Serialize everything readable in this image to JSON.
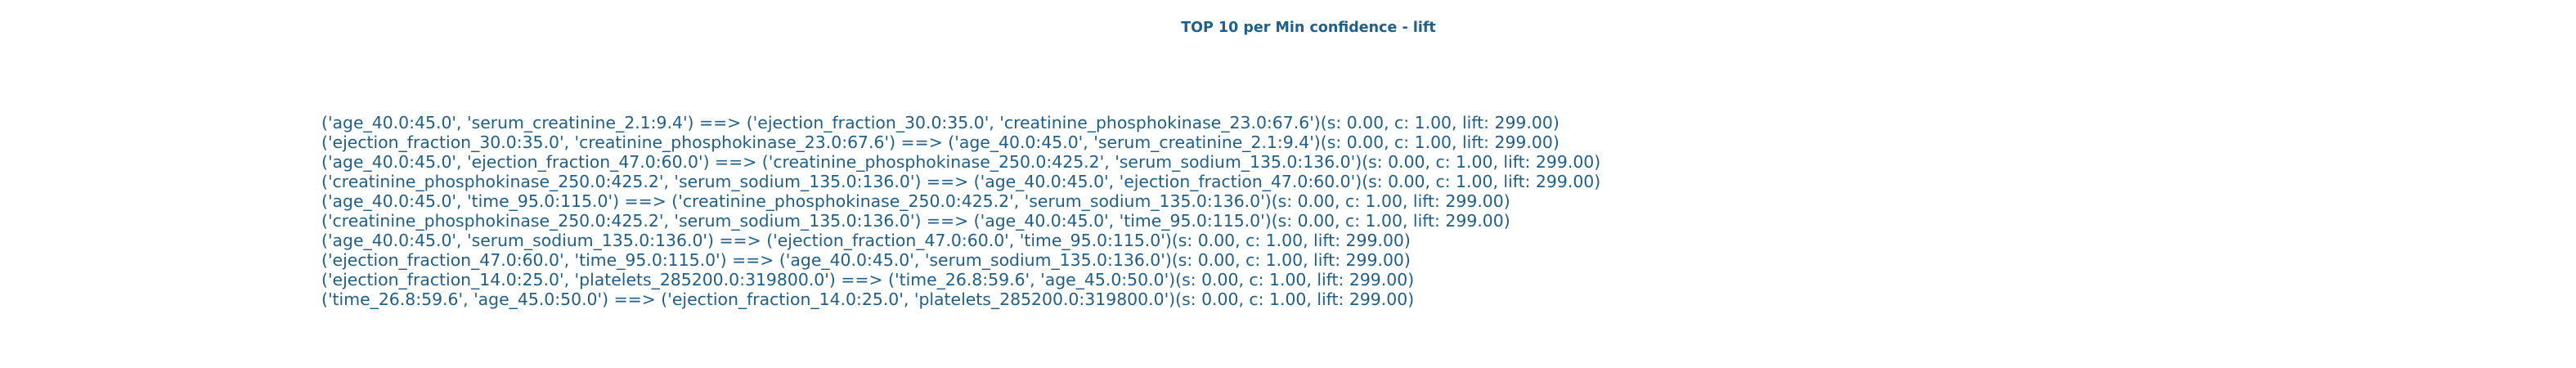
{
  "chart_data": {
    "type": "table",
    "title": "TOP 10 per Min confidence - lift",
    "colors": {
      "text": "#205f87",
      "background": "#ffffff"
    },
    "rows": [
      "('age_40.0:45.0', 'serum_creatinine_2.1:9.4') ==> ('ejection_fraction_30.0:35.0', 'creatinine_phosphokinase_23.0:67.6')(s: 0.00, c: 1.00, lift: 299.00)",
      "('ejection_fraction_30.0:35.0', 'creatinine_phosphokinase_23.0:67.6') ==> ('age_40.0:45.0', 'serum_creatinine_2.1:9.4')(s: 0.00, c: 1.00, lift: 299.00)",
      "('age_40.0:45.0', 'ejection_fraction_47.0:60.0') ==> ('creatinine_phosphokinase_250.0:425.2', 'serum_sodium_135.0:136.0')(s: 0.00, c: 1.00, lift: 299.00)",
      "('creatinine_phosphokinase_250.0:425.2', 'serum_sodium_135.0:136.0') ==> ('age_40.0:45.0', 'ejection_fraction_47.0:60.0')(s: 0.00, c: 1.00, lift: 299.00)",
      "('age_40.0:45.0', 'time_95.0:115.0') ==> ('creatinine_phosphokinase_250.0:425.2', 'serum_sodium_135.0:136.0')(s: 0.00, c: 1.00, lift: 299.00)",
      "('creatinine_phosphokinase_250.0:425.2', 'serum_sodium_135.0:136.0') ==> ('age_40.0:45.0', 'time_95.0:115.0')(s: 0.00, c: 1.00, lift: 299.00)",
      "('age_40.0:45.0', 'serum_sodium_135.0:136.0') ==> ('ejection_fraction_47.0:60.0', 'time_95.0:115.0')(s: 0.00, c: 1.00, lift: 299.00)",
      "('ejection_fraction_47.0:60.0', 'time_95.0:115.0') ==> ('age_40.0:45.0', 'serum_sodium_135.0:136.0')(s: 0.00, c: 1.00, lift: 299.00)",
      "('ejection_fraction_14.0:25.0', 'platelets_285200.0:319800.0') ==> ('time_26.8:59.6', 'age_45.0:50.0')(s: 0.00, c: 1.00, lift: 299.00)",
      "('time_26.8:59.6', 'age_45.0:50.0') ==> ('ejection_fraction_14.0:25.0', 'platelets_285200.0:319800.0')(s: 0.00, c: 1.00, lift: 299.00)"
    ]
  }
}
